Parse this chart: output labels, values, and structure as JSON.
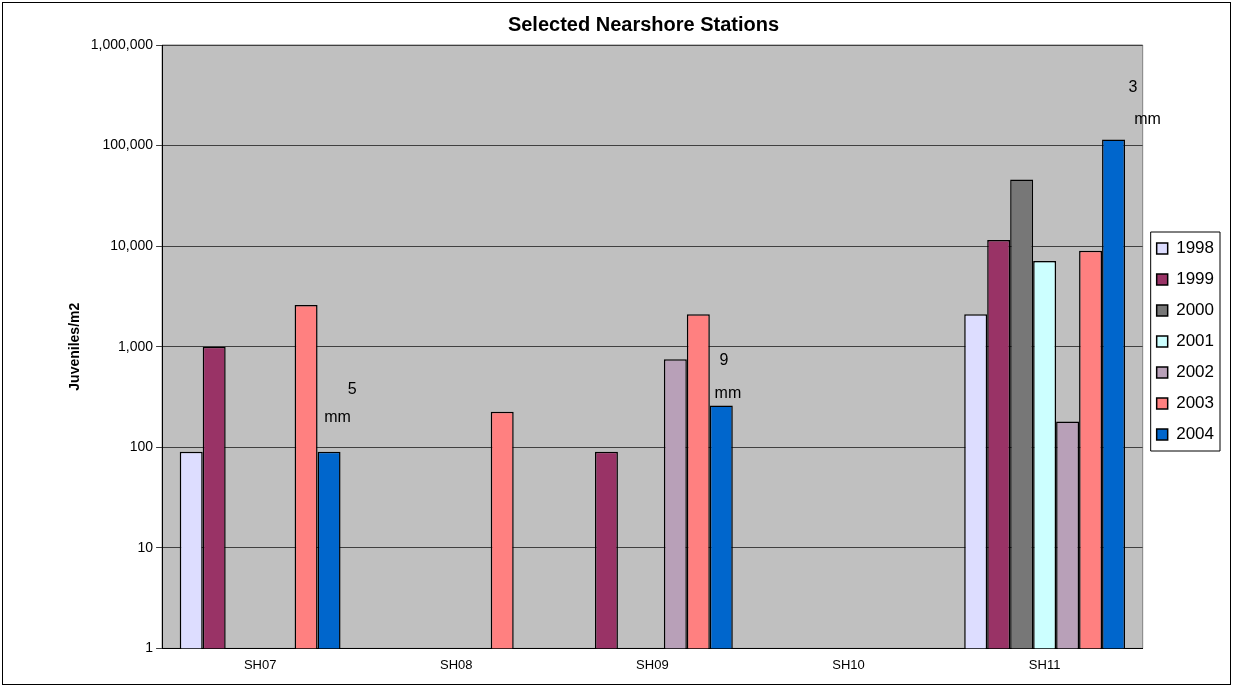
{
  "chart_data": {
    "type": "bar",
    "title": "Selected Nearshore Stations",
    "ylabel": "Juveniles/m2",
    "categories": [
      "SH07",
      "SH08",
      "SH09",
      "SH10",
      "SH11"
    ],
    "series": [
      {
        "name": "1998",
        "color": "#ddddff",
        "values": [
          90,
          null,
          null,
          null,
          2100
        ]
      },
      {
        "name": "1999",
        "color": "#993366",
        "values": [
          1000,
          null,
          90,
          null,
          11500
        ]
      },
      {
        "name": "2000",
        "color": "#777777",
        "values": [
          null,
          null,
          null,
          null,
          46000
        ]
      },
      {
        "name": "2001",
        "color": "#ccffff",
        "values": [
          null,
          null,
          null,
          null,
          7100
        ]
      },
      {
        "name": "2002",
        "color": "#b8a0b8",
        "values": [
          null,
          null,
          750,
          null,
          180
        ]
      },
      {
        "name": "2003",
        "color": "#ff8080",
        "values": [
          2600,
          225,
          2100,
          null,
          9000
        ]
      },
      {
        "name": "2004",
        "color": "#0066cc",
        "values": [
          90,
          null,
          260,
          null,
          115000
        ]
      }
    ],
    "log": true,
    "ylim": [
      1,
      1000000
    ],
    "yticks": [
      1,
      10,
      100,
      {
        "value": 1000,
        "label": "1,000"
      },
      {
        "value": 10000,
        "label": "10,000"
      },
      {
        "value": 100000,
        "label": "100,000"
      },
      {
        "value": 1000000,
        "label": "1,000,000"
      }
    ],
    "grid": "y",
    "legend": "right",
    "annotations": [
      "5",
      "mm",
      "9",
      "mm",
      "3",
      "mm"
    ]
  }
}
